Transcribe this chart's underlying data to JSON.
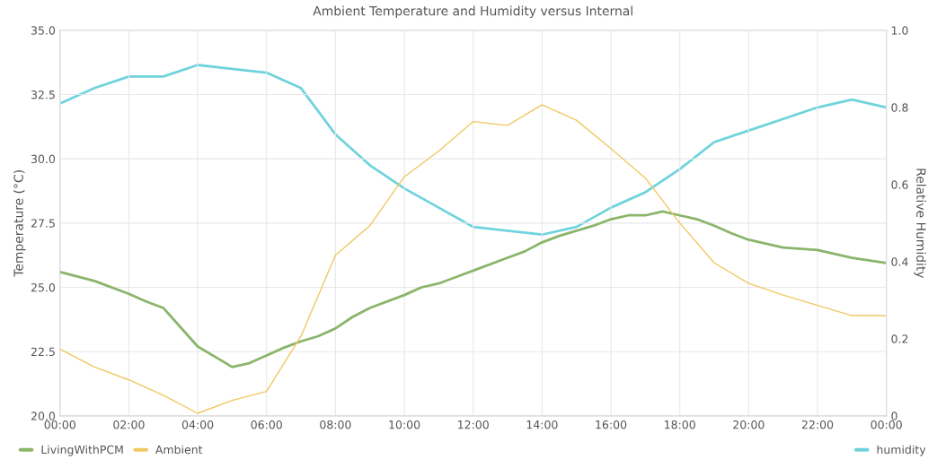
{
  "chart_data": {
    "type": "line",
    "title": "Ambient Temperature and Humidity versus Internal",
    "ylabel": "Temperature (°C)",
    "y2label": "Relative Humidity",
    "xlim": [
      0,
      24
    ],
    "xticks": [
      {
        "value": 0,
        "label": "00:00"
      },
      {
        "value": 2,
        "label": "02:00"
      },
      {
        "value": 4,
        "label": "04:00"
      },
      {
        "value": 6,
        "label": "06:00"
      },
      {
        "value": 8,
        "label": "08:00"
      },
      {
        "value": 10,
        "label": "10:00"
      },
      {
        "value": 12,
        "label": "12:00"
      },
      {
        "value": 14,
        "label": "14:00"
      },
      {
        "value": 16,
        "label": "16:00"
      },
      {
        "value": 18,
        "label": "18:00"
      },
      {
        "value": 20,
        "label": "20:00"
      },
      {
        "value": 22,
        "label": "22:00"
      },
      {
        "value": 24,
        "label": "00:00"
      }
    ],
    "ylim": [
      20,
      35
    ],
    "yticks": [
      {
        "value": 20,
        "label": "20.0"
      },
      {
        "value": 22.5,
        "label": "22.5"
      },
      {
        "value": 25,
        "label": "25.0"
      },
      {
        "value": 27.5,
        "label": "27.5"
      },
      {
        "value": 30,
        "label": "30.0"
      },
      {
        "value": 32.5,
        "label": "32.5"
      },
      {
        "value": 35,
        "label": "35.0"
      }
    ],
    "y2lim": [
      0,
      1
    ],
    "y2ticks": [
      0,
      {
        "value": 0.2,
        "label": "0.2"
      },
      {
        "value": 0.4,
        "label": "0.4"
      },
      {
        "value": 0.6,
        "label": "0.6"
      },
      {
        "value": 0.8,
        "label": "0.8"
      },
      {
        "value": 1,
        "label": "1.0"
      }
    ],
    "grid": true,
    "legend": "bottom",
    "marker": "none",
    "series": [
      {
        "name": "LivingWithPCM",
        "color": "#8ab56a",
        "x": [
          0,
          1,
          2,
          2.5,
          3,
          3.5,
          4,
          4.5,
          5,
          5.5,
          6,
          6.5,
          7,
          7.5,
          8,
          8.5,
          9,
          10,
          10.5,
          11,
          12,
          13,
          13.5,
          14,
          14.5,
          15,
          15.5,
          16,
          16.5,
          17,
          17.5,
          18,
          18.5,
          19,
          19.5,
          20,
          21,
          22,
          23,
          24
        ],
        "values": [
          25.6,
          25.25,
          24.75,
          24.45,
          24.2,
          23.45,
          22.7,
          22.3,
          21.9,
          22.05,
          22.35,
          22.65,
          22.9,
          23.1,
          23.4,
          23.85,
          24.2,
          24.7,
          25.0,
          25.15,
          25.65,
          26.15,
          26.4,
          26.75,
          27.0,
          27.2,
          27.4,
          27.65,
          27.8,
          27.8,
          27.95,
          27.8,
          27.65,
          27.4,
          27.1,
          26.85,
          26.55,
          26.45,
          26.15,
          25.95
        ]
      },
      {
        "name": "Ambient",
        "color": "#f0c862",
        "x": [
          0,
          1,
          2,
          3,
          4,
          5,
          6,
          7,
          8,
          9,
          10,
          11,
          12,
          13,
          14,
          15,
          16,
          17,
          18,
          19,
          20,
          21,
          22,
          23,
          24
        ],
        "values": [
          22.6,
          21.9,
          21.4,
          20.8,
          20.1,
          20.6,
          20.95,
          23.1,
          26.25,
          27.4,
          29.3,
          30.3,
          31.45,
          31.3,
          32.1,
          31.5,
          30.4,
          29.25,
          27.5,
          25.95,
          25.15,
          24.7,
          24.3,
          23.9,
          23.9
        ]
      },
      {
        "name": "humidity",
        "color": "#6fd3dd",
        "axis": "y2",
        "x": [
          0,
          1,
          2,
          3,
          4,
          5,
          6,
          7,
          8,
          9,
          10,
          11,
          12,
          13,
          14,
          15,
          16,
          17,
          18,
          19,
          20,
          21,
          22,
          23,
          24
        ],
        "values": [
          0.81,
          0.85,
          0.88,
          0.88,
          0.91,
          0.9,
          0.89,
          0.85,
          0.73,
          0.65,
          0.59,
          0.54,
          0.49,
          0.48,
          0.47,
          0.49,
          0.54,
          0.58,
          0.64,
          0.71,
          0.74,
          0.77,
          0.8,
          0.82,
          0.8
        ]
      }
    ]
  }
}
